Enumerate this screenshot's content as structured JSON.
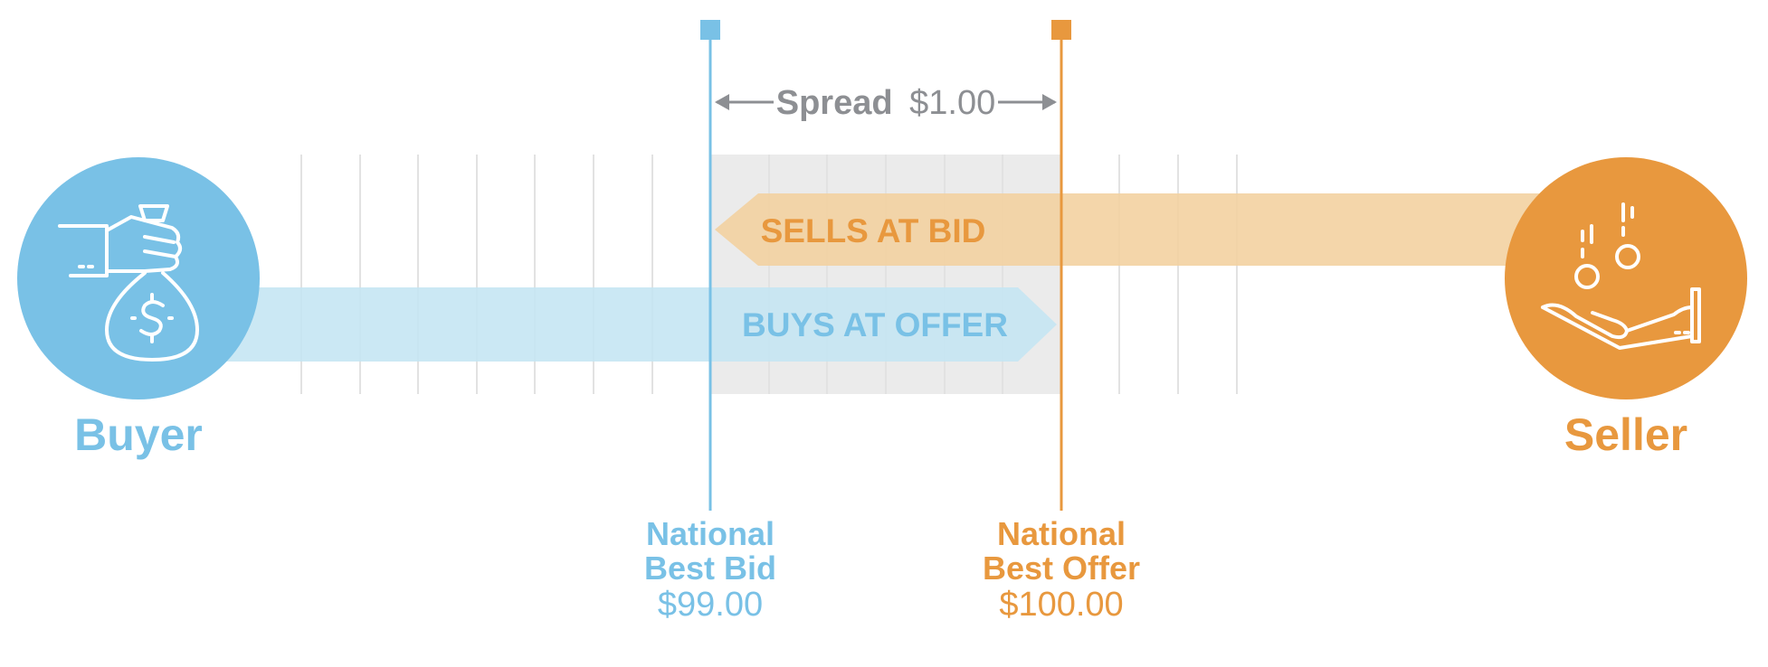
{
  "colors": {
    "blue": "#79c1e6",
    "blue_light": "#c5e6f3",
    "orange": "#e8983e",
    "orange_light": "#f3d2a1",
    "grey_text": "#8d8f93",
    "grey_band": "#ebebeb",
    "grid_line": "#e2e2e2"
  },
  "spread": {
    "label": "Spread",
    "value": "$1.00"
  },
  "buyer": {
    "label": "Buyer",
    "icon": "money-bag-hand-icon"
  },
  "seller": {
    "label": "Seller",
    "icon": "coins-hand-icon"
  },
  "sells_at_bid": {
    "label": "SELLS AT BID"
  },
  "buys_at_offer": {
    "label": "BUYS AT OFFER"
  },
  "best_bid": {
    "line1": "National",
    "line2": "Best Bid",
    "price": "$99.00"
  },
  "best_offer": {
    "line1": "National",
    "line2": "Best Offer",
    "price": "$100.00"
  }
}
